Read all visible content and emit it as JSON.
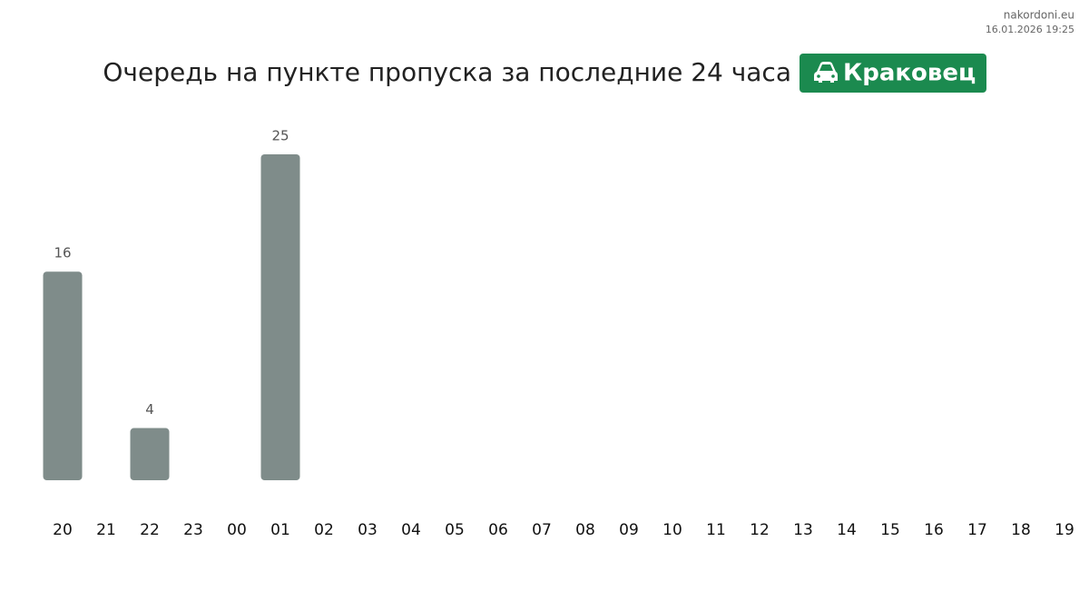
{
  "source": "nakordoni.eu",
  "timestamp": "16.01.2026 19:25",
  "chart_data": {
    "type": "bar",
    "title": "Очередь на пункте пропуска за последние 24 часа",
    "badge": "Краковец",
    "categories": [
      "20",
      "21",
      "22",
      "23",
      "00",
      "01",
      "02",
      "03",
      "04",
      "05",
      "06",
      "07",
      "08",
      "09",
      "10",
      "11",
      "12",
      "13",
      "14",
      "15",
      "16",
      "17",
      "18",
      "19"
    ],
    "values": [
      16,
      null,
      4,
      null,
      null,
      25,
      null,
      null,
      null,
      null,
      null,
      null,
      null,
      null,
      null,
      null,
      null,
      null,
      null,
      null,
      null,
      null,
      null,
      null
    ],
    "color": "#7f8c8a",
    "badge_color": "#1b8a4f"
  }
}
